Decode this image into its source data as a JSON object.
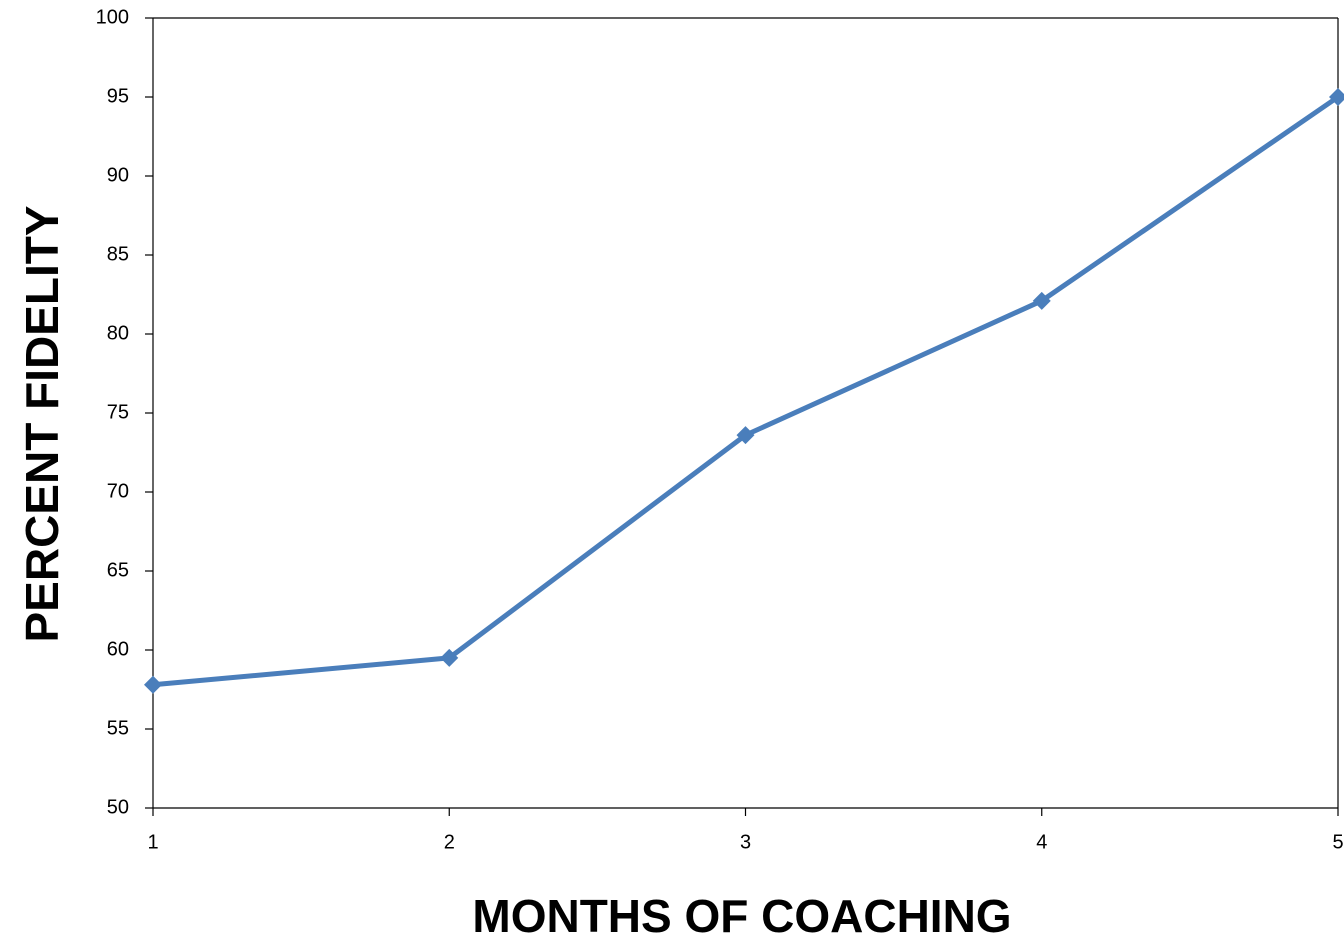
{
  "chart_data": {
    "type": "line",
    "x_label": "MONTHS OF COACHING",
    "y_label": "PERCENT FIDELITY",
    "x": [
      1,
      2,
      3,
      4,
      5
    ],
    "values": [
      57.8,
      59.5,
      73.6,
      82.1,
      95
    ],
    "color": "#4a7ebb",
    "xlim": [
      1,
      5
    ],
    "xticks": [
      1,
      2,
      3,
      4,
      5
    ],
    "ylim": [
      50,
      100
    ],
    "yticks": [
      50,
      55,
      60,
      65,
      70,
      75,
      80,
      85,
      90,
      95,
      100
    ]
  }
}
